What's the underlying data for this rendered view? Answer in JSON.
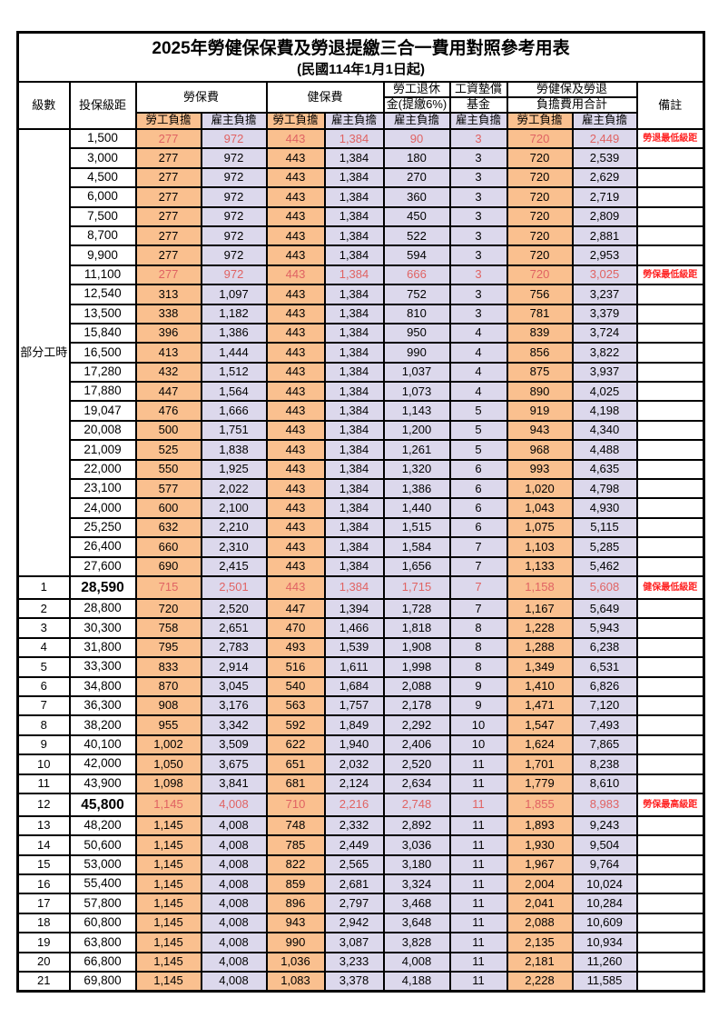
{
  "title": "2025年勞健保保費及勞退提繳三合一費用對照參考用表",
  "subtitle": "(民國114年1月1日起)",
  "columns": {
    "level": "級數",
    "bracket": "投保級距",
    "labor": "勞保費",
    "health": "健保費",
    "pension_top": "勞工退休",
    "pension_bottom": "金(提繳6%)",
    "fund_top": "工資墊償",
    "fund_bottom": "基金",
    "total_top": "勞健保及勞退",
    "total_bottom": "負擔費用合計",
    "remark": "備註",
    "employee_label": "勞工負擔",
    "employer_label": "雇主負擔"
  },
  "group_label": "部分工時",
  "group_span": 23,
  "colors": {
    "employee_bg": "#FAC08F",
    "employer_bg": "#DCD8EC",
    "highlight_text": "#E06363",
    "remark_text": "#FF2222"
  },
  "rows": [
    {
      "level": "",
      "bracket": "1,500",
      "v": [
        "277",
        "972",
        "443",
        "1,384",
        "90",
        "3",
        "720",
        "2,449"
      ],
      "remark": "勞退最低級距",
      "highlight": true,
      "emphasis": false
    },
    {
      "level": "",
      "bracket": "3,000",
      "v": [
        "277",
        "972",
        "443",
        "1,384",
        "180",
        "3",
        "720",
        "2,539"
      ],
      "remark": "",
      "highlight": false,
      "emphasis": false
    },
    {
      "level": "",
      "bracket": "4,500",
      "v": [
        "277",
        "972",
        "443",
        "1,384",
        "270",
        "3",
        "720",
        "2,629"
      ],
      "remark": "",
      "highlight": false,
      "emphasis": false
    },
    {
      "level": "",
      "bracket": "6,000",
      "v": [
        "277",
        "972",
        "443",
        "1,384",
        "360",
        "3",
        "720",
        "2,719"
      ],
      "remark": "",
      "highlight": false,
      "emphasis": false
    },
    {
      "level": "",
      "bracket": "7,500",
      "v": [
        "277",
        "972",
        "443",
        "1,384",
        "450",
        "3",
        "720",
        "2,809"
      ],
      "remark": "",
      "highlight": false,
      "emphasis": false
    },
    {
      "level": "",
      "bracket": "8,700",
      "v": [
        "277",
        "972",
        "443",
        "1,384",
        "522",
        "3",
        "720",
        "2,881"
      ],
      "remark": "",
      "highlight": false,
      "emphasis": false
    },
    {
      "level": "",
      "bracket": "9,900",
      "v": [
        "277",
        "972",
        "443",
        "1,384",
        "594",
        "3",
        "720",
        "2,953"
      ],
      "remark": "",
      "highlight": false,
      "emphasis": false
    },
    {
      "level": "",
      "bracket": "11,100",
      "v": [
        "277",
        "972",
        "443",
        "1,384",
        "666",
        "3",
        "720",
        "3,025"
      ],
      "remark": "勞保最低級距",
      "highlight": true,
      "emphasis": false
    },
    {
      "level": "",
      "bracket": "12,540",
      "v": [
        "313",
        "1,097",
        "443",
        "1,384",
        "752",
        "3",
        "756",
        "3,237"
      ],
      "remark": "",
      "highlight": false,
      "emphasis": false
    },
    {
      "level": "",
      "bracket": "13,500",
      "v": [
        "338",
        "1,182",
        "443",
        "1,384",
        "810",
        "3",
        "781",
        "3,379"
      ],
      "remark": "",
      "highlight": false,
      "emphasis": false
    },
    {
      "level": "",
      "bracket": "15,840",
      "v": [
        "396",
        "1,386",
        "443",
        "1,384",
        "950",
        "4",
        "839",
        "3,724"
      ],
      "remark": "",
      "highlight": false,
      "emphasis": false
    },
    {
      "level": "",
      "bracket": "16,500",
      "v": [
        "413",
        "1,444",
        "443",
        "1,384",
        "990",
        "4",
        "856",
        "3,822"
      ],
      "remark": "",
      "highlight": false,
      "emphasis": false
    },
    {
      "level": "",
      "bracket": "17,280",
      "v": [
        "432",
        "1,512",
        "443",
        "1,384",
        "1,037",
        "4",
        "875",
        "3,937"
      ],
      "remark": "",
      "highlight": false,
      "emphasis": false
    },
    {
      "level": "",
      "bracket": "17,880",
      "v": [
        "447",
        "1,564",
        "443",
        "1,384",
        "1,073",
        "4",
        "890",
        "4,025"
      ],
      "remark": "",
      "highlight": false,
      "emphasis": false
    },
    {
      "level": "",
      "bracket": "19,047",
      "v": [
        "476",
        "1,666",
        "443",
        "1,384",
        "1,143",
        "5",
        "919",
        "4,198"
      ],
      "remark": "",
      "highlight": false,
      "emphasis": false
    },
    {
      "level": "",
      "bracket": "20,008",
      "v": [
        "500",
        "1,751",
        "443",
        "1,384",
        "1,200",
        "5",
        "943",
        "4,340"
      ],
      "remark": "",
      "highlight": false,
      "emphasis": false
    },
    {
      "level": "",
      "bracket": "21,009",
      "v": [
        "525",
        "1,838",
        "443",
        "1,384",
        "1,261",
        "5",
        "968",
        "4,488"
      ],
      "remark": "",
      "highlight": false,
      "emphasis": false
    },
    {
      "level": "",
      "bracket": "22,000",
      "v": [
        "550",
        "1,925",
        "443",
        "1,384",
        "1,320",
        "6",
        "993",
        "4,635"
      ],
      "remark": "",
      "highlight": false,
      "emphasis": false
    },
    {
      "level": "",
      "bracket": "23,100",
      "v": [
        "577",
        "2,022",
        "443",
        "1,384",
        "1,386",
        "6",
        "1,020",
        "4,798"
      ],
      "remark": "",
      "highlight": false,
      "emphasis": false
    },
    {
      "level": "",
      "bracket": "24,000",
      "v": [
        "600",
        "2,100",
        "443",
        "1,384",
        "1,440",
        "6",
        "1,043",
        "4,930"
      ],
      "remark": "",
      "highlight": false,
      "emphasis": false
    },
    {
      "level": "",
      "bracket": "25,250",
      "v": [
        "632",
        "2,210",
        "443",
        "1,384",
        "1,515",
        "6",
        "1,075",
        "5,115"
      ],
      "remark": "",
      "highlight": false,
      "emphasis": false
    },
    {
      "level": "",
      "bracket": "26,400",
      "v": [
        "660",
        "2,310",
        "443",
        "1,384",
        "1,584",
        "7",
        "1,103",
        "5,285"
      ],
      "remark": "",
      "highlight": false,
      "emphasis": false
    },
    {
      "level": "",
      "bracket": "27,600",
      "v": [
        "690",
        "2,415",
        "443",
        "1,384",
        "1,656",
        "7",
        "1,133",
        "5,462"
      ],
      "remark": "",
      "highlight": false,
      "emphasis": false
    },
    {
      "level": "1",
      "bracket": "28,590",
      "v": [
        "715",
        "2,501",
        "443",
        "1,384",
        "1,715",
        "7",
        "1,158",
        "5,608"
      ],
      "remark": "健保最低級距",
      "highlight": true,
      "emphasis": true
    },
    {
      "level": "2",
      "bracket": "28,800",
      "v": [
        "720",
        "2,520",
        "447",
        "1,394",
        "1,728",
        "7",
        "1,167",
        "5,649"
      ],
      "remark": "",
      "highlight": false,
      "emphasis": false
    },
    {
      "level": "3",
      "bracket": "30,300",
      "v": [
        "758",
        "2,651",
        "470",
        "1,466",
        "1,818",
        "8",
        "1,228",
        "5,943"
      ],
      "remark": "",
      "highlight": false,
      "emphasis": false
    },
    {
      "level": "4",
      "bracket": "31,800",
      "v": [
        "795",
        "2,783",
        "493",
        "1,539",
        "1,908",
        "8",
        "1,288",
        "6,238"
      ],
      "remark": "",
      "highlight": false,
      "emphasis": false
    },
    {
      "level": "5",
      "bracket": "33,300",
      "v": [
        "833",
        "2,914",
        "516",
        "1,611",
        "1,998",
        "8",
        "1,349",
        "6,531"
      ],
      "remark": "",
      "highlight": false,
      "emphasis": false
    },
    {
      "level": "6",
      "bracket": "34,800",
      "v": [
        "870",
        "3,045",
        "540",
        "1,684",
        "2,088",
        "9",
        "1,410",
        "6,826"
      ],
      "remark": "",
      "highlight": false,
      "emphasis": false
    },
    {
      "level": "7",
      "bracket": "36,300",
      "v": [
        "908",
        "3,176",
        "563",
        "1,757",
        "2,178",
        "9",
        "1,471",
        "7,120"
      ],
      "remark": "",
      "highlight": false,
      "emphasis": false
    },
    {
      "level": "8",
      "bracket": "38,200",
      "v": [
        "955",
        "3,342",
        "592",
        "1,849",
        "2,292",
        "10",
        "1,547",
        "7,493"
      ],
      "remark": "",
      "highlight": false,
      "emphasis": false
    },
    {
      "level": "9",
      "bracket": "40,100",
      "v": [
        "1,002",
        "3,509",
        "622",
        "1,940",
        "2,406",
        "10",
        "1,624",
        "7,865"
      ],
      "remark": "",
      "highlight": false,
      "emphasis": false
    },
    {
      "level": "10",
      "bracket": "42,000",
      "v": [
        "1,050",
        "3,675",
        "651",
        "2,032",
        "2,520",
        "11",
        "1,701",
        "8,238"
      ],
      "remark": "",
      "highlight": false,
      "emphasis": false
    },
    {
      "level": "11",
      "bracket": "43,900",
      "v": [
        "1,098",
        "3,841",
        "681",
        "2,124",
        "2,634",
        "11",
        "1,779",
        "8,610"
      ],
      "remark": "",
      "highlight": false,
      "emphasis": false
    },
    {
      "level": "12",
      "bracket": "45,800",
      "v": [
        "1,145",
        "4,008",
        "710",
        "2,216",
        "2,748",
        "11",
        "1,855",
        "8,983"
      ],
      "remark": "勞保最高級距",
      "highlight": true,
      "emphasis": true
    },
    {
      "level": "13",
      "bracket": "48,200",
      "v": [
        "1,145",
        "4,008",
        "748",
        "2,332",
        "2,892",
        "11",
        "1,893",
        "9,243"
      ],
      "remark": "",
      "highlight": false,
      "emphasis": false
    },
    {
      "level": "14",
      "bracket": "50,600",
      "v": [
        "1,145",
        "4,008",
        "785",
        "2,449",
        "3,036",
        "11",
        "1,930",
        "9,504"
      ],
      "remark": "",
      "highlight": false,
      "emphasis": false
    },
    {
      "level": "15",
      "bracket": "53,000",
      "v": [
        "1,145",
        "4,008",
        "822",
        "2,565",
        "3,180",
        "11",
        "1,967",
        "9,764"
      ],
      "remark": "",
      "highlight": false,
      "emphasis": false
    },
    {
      "level": "16",
      "bracket": "55,400",
      "v": [
        "1,145",
        "4,008",
        "859",
        "2,681",
        "3,324",
        "11",
        "2,004",
        "10,024"
      ],
      "remark": "",
      "highlight": false,
      "emphasis": false
    },
    {
      "level": "17",
      "bracket": "57,800",
      "v": [
        "1,145",
        "4,008",
        "896",
        "2,797",
        "3,468",
        "11",
        "2,041",
        "10,284"
      ],
      "remark": "",
      "highlight": false,
      "emphasis": false
    },
    {
      "level": "18",
      "bracket": "60,800",
      "v": [
        "1,145",
        "4,008",
        "943",
        "2,942",
        "3,648",
        "11",
        "2,088",
        "10,609"
      ],
      "remark": "",
      "highlight": false,
      "emphasis": false
    },
    {
      "level": "19",
      "bracket": "63,800",
      "v": [
        "1,145",
        "4,008",
        "990",
        "3,087",
        "3,828",
        "11",
        "2,135",
        "10,934"
      ],
      "remark": "",
      "highlight": false,
      "emphasis": false
    },
    {
      "level": "20",
      "bracket": "66,800",
      "v": [
        "1,145",
        "4,008",
        "1,036",
        "3,233",
        "4,008",
        "11",
        "2,181",
        "11,260"
      ],
      "remark": "",
      "highlight": false,
      "emphasis": false
    },
    {
      "level": "21",
      "bracket": "69,800",
      "v": [
        "1,145",
        "4,008",
        "1,083",
        "3,378",
        "4,188",
        "11",
        "2,228",
        "11,585"
      ],
      "remark": "",
      "highlight": false,
      "emphasis": false
    }
  ]
}
